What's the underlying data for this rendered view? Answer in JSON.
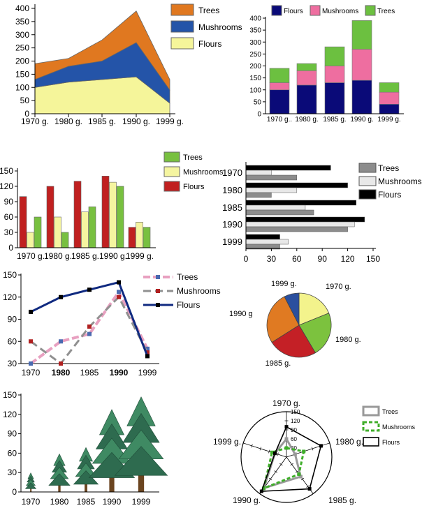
{
  "chart_data": [
    {
      "type": "area",
      "categories": [
        "1970 g.",
        "1980 g.",
        "1985 g.",
        "1990 g.",
        "1999 g."
      ],
      "stacked": true,
      "series": [
        {
          "name": "Flours",
          "values": [
            100,
            120,
            130,
            140,
            40
          ],
          "color": "#f5f59a"
        },
        {
          "name": "Mushrooms",
          "values": [
            30,
            60,
            70,
            130,
            50
          ],
          "color": "#2454a8"
        },
        {
          "name": "Trees",
          "values": [
            60,
            30,
            80,
            120,
            40
          ],
          "color": "#e07820"
        }
      ],
      "legend": [
        "Trees",
        "Mushrooms",
        "Flours"
      ],
      "ylim": [
        0,
        400
      ],
      "yticks": [
        "0",
        "50",
        "100",
        "150",
        "200",
        "250",
        "300",
        "350",
        "400"
      ]
    },
    {
      "type": "bar",
      "stacked": true,
      "categories": [
        "1970 g..",
        "1980 g.",
        "1985 g.",
        "1990 g.",
        "1999 g."
      ],
      "series": [
        {
          "name": "Flours",
          "values": [
            100,
            120,
            130,
            140,
            40
          ],
          "color": "#0a0a78"
        },
        {
          "name": "Mushrooms",
          "values": [
            30,
            60,
            70,
            130,
            50
          ],
          "color": "#ee6ea0"
        },
        {
          "name": "Trees",
          "values": [
            60,
            30,
            80,
            120,
            40
          ],
          "color": "#6cc040"
        }
      ],
      "legend": [
        "Flours",
        "Mushrooms",
        "Trees"
      ],
      "ylim": [
        0,
        400
      ],
      "yticks": [
        "0",
        "50",
        "100",
        "150",
        "200",
        "250",
        "300",
        "350",
        "400"
      ]
    },
    {
      "type": "bar",
      "categories": [
        "1970 g.",
        "1980 g.",
        "1985 g.",
        "1990 g.",
        "1999 g."
      ],
      "series": [
        {
          "name": "Flours",
          "values": [
            100,
            120,
            130,
            140,
            40
          ],
          "color": "#c02020"
        },
        {
          "name": "Mushrooms",
          "values": [
            30,
            60,
            70,
            128,
            50
          ],
          "color": "#f5f5a0"
        },
        {
          "name": "Trees",
          "values": [
            60,
            30,
            80,
            120,
            40
          ],
          "color": "#78c040"
        }
      ],
      "legend": [
        "Trees",
        "Mushrooms",
        "Flours"
      ],
      "ylim": [
        0,
        150
      ],
      "yticks": [
        "0",
        "30",
        "60",
        "90",
        "120",
        "150"
      ]
    },
    {
      "type": "bar",
      "orientation": "horizontal",
      "categories": [
        "1970",
        "1980",
        "1985",
        "1990",
        "1999"
      ],
      "series": [
        {
          "name": "Flours",
          "values": [
            100,
            120,
            130,
            140,
            40
          ],
          "color": "#000000"
        },
        {
          "name": "Mushrooms",
          "values": [
            30,
            60,
            70,
            128,
            50
          ],
          "color": "#e8e8e8"
        },
        {
          "name": "Trees",
          "values": [
            60,
            30,
            80,
            120,
            40
          ],
          "color": "#8c8c8c"
        }
      ],
      "legend": [
        "Trees",
        "Mushrooms",
        "Flours"
      ],
      "xlim": [
        0,
        150
      ],
      "xticks": [
        "0",
        "30",
        "60",
        "90",
        "120",
        "150"
      ]
    },
    {
      "type": "line",
      "categories": [
        "1970",
        "1980",
        "1985",
        "1990",
        "1999"
      ],
      "bold_categories": [
        "1980",
        "1990"
      ],
      "series": [
        {
          "name": "Trees",
          "values": [
            30,
            60,
            70,
            127,
            50
          ],
          "color": "#e8a0c0",
          "marker_color": "#4a6ab0"
        },
        {
          "name": "Mushrooms",
          "values": [
            60,
            30,
            80,
            120,
            45
          ],
          "color": "#909090",
          "marker_color": "#b02020"
        },
        {
          "name": "Flours",
          "values": [
            100,
            120,
            130,
            140,
            40
          ],
          "color": "#102a80",
          "marker_color": "#000000"
        }
      ],
      "legend": [
        "Trees",
        "Mushrooms",
        "Flours"
      ],
      "ylim": [
        30,
        150
      ],
      "yticks": [
        "30",
        "60",
        "90",
        "120",
        "150"
      ]
    },
    {
      "type": "pie",
      "series": [
        {
          "labels": [
            "1970 g.",
            "1980 g.",
            "1985 g.",
            "1990 g",
            "1999 g."
          ],
          "values": [
            100,
            120,
            130,
            140,
            40
          ],
          "colors": [
            "#f3f38c",
            "#7cc23e",
            "#c42026",
            "#e07a22",
            "#2a4f9e"
          ]
        }
      ]
    },
    {
      "type": "pictograph",
      "categories": [
        "1970",
        "1980",
        "1985",
        "1990",
        "1999"
      ],
      "values": [
        30,
        60,
        70,
        130,
        150
      ],
      "ylim": [
        0,
        150
      ],
      "yticks": [
        "0",
        "30",
        "60",
        "90",
        "120",
        "150"
      ]
    },
    {
      "type": "radar",
      "axes": [
        "1970 g.",
        "1980 g.",
        "1985 g.",
        "1990 g.",
        "1999 g."
      ],
      "series": [
        {
          "name": "Trees",
          "values": [
            60,
            30,
            80,
            127,
            40
          ],
          "color": "#999999"
        },
        {
          "name": "Mushrooms",
          "values": [
            30,
            60,
            70,
            128,
            50
          ],
          "color": "#3fae2a"
        },
        {
          "name": "Flours",
          "values": [
            100,
            120,
            130,
            140,
            40
          ],
          "color": "#000000"
        }
      ],
      "legend": [
        "Trees",
        "Mushrooms",
        "Flours"
      ],
      "rlim": [
        0,
        150
      ],
      "rticks": [
        "30",
        "60",
        "90",
        "120",
        "150"
      ]
    }
  ]
}
